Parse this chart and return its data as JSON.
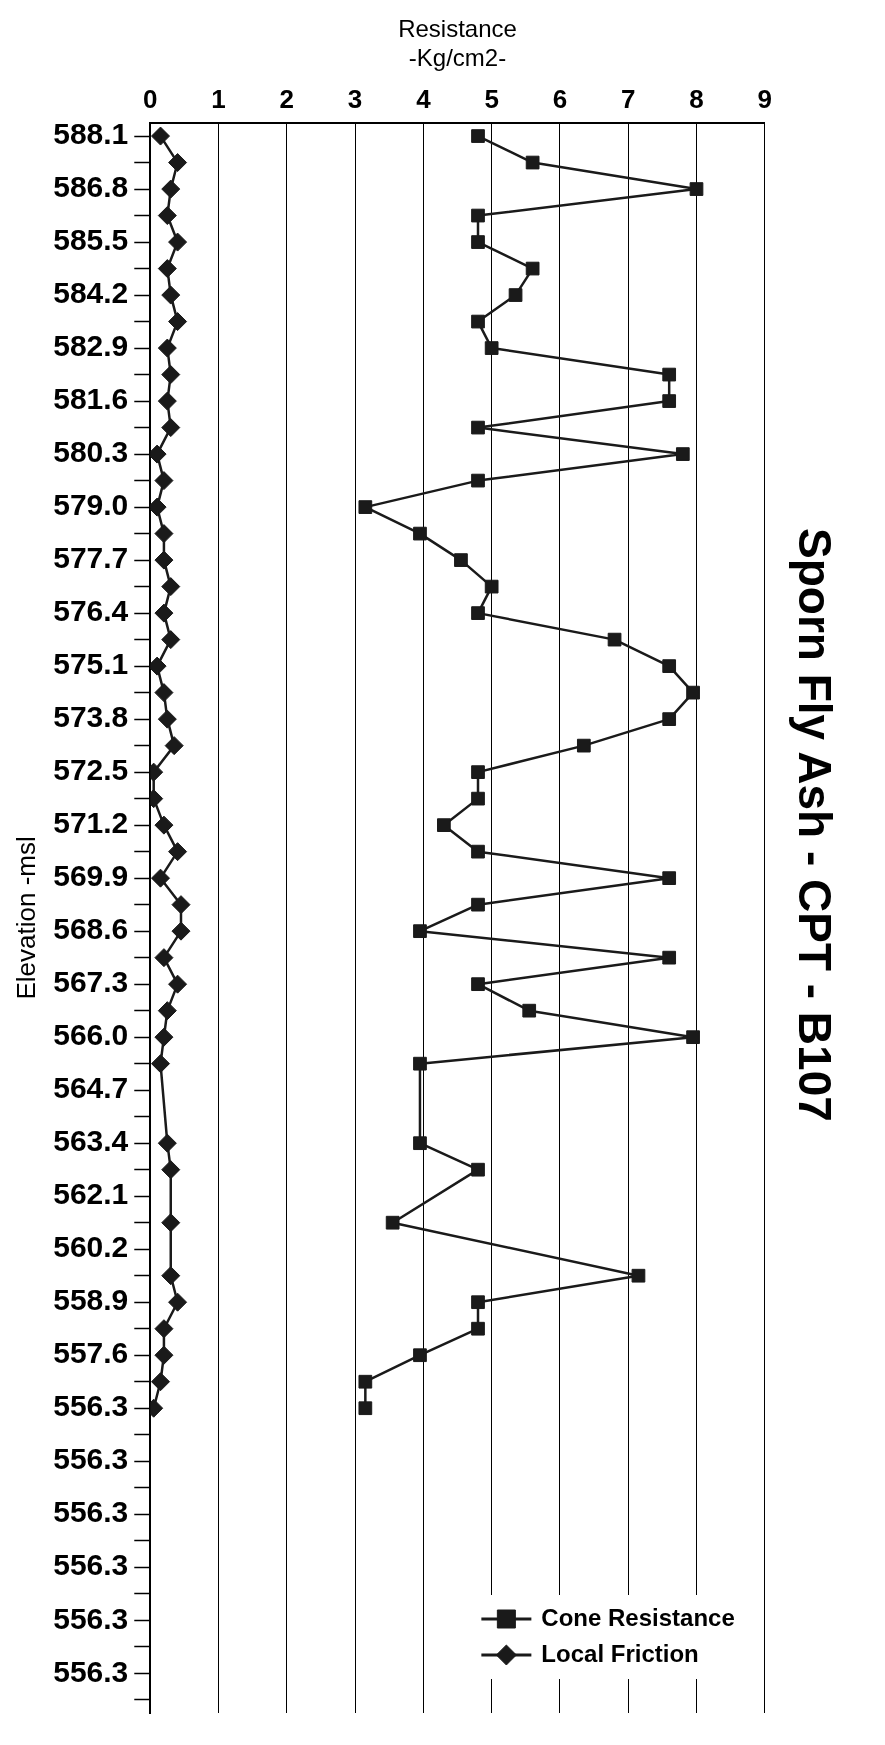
{
  "chart_data": {
    "type": "line",
    "title": "Sporn Fly Ash - CPT - B107",
    "xlabel": "Resistance\n-Kg/cm2-",
    "ylabel": "Elevation -msl",
    "orientation": "horizontal",
    "categories": [
      "588.1",
      null,
      "586.8",
      null,
      "585.5",
      null,
      "584.2",
      null,
      "582.9",
      null,
      "581.6",
      null,
      "580.3",
      null,
      "579.0",
      null,
      "577.7",
      null,
      "576.4",
      null,
      "575.1",
      null,
      "573.8",
      null,
      "572.5",
      null,
      "571.2",
      null,
      "569.9",
      null,
      "568.6",
      null,
      "567.3",
      null,
      "566.0",
      null,
      "564.7",
      null,
      "563.4",
      null,
      "562.1",
      null,
      "560.2",
      null,
      "558.9",
      null,
      "557.6",
      null,
      "556.3",
      null,
      "556.3",
      null,
      "556.3",
      null,
      "556.3",
      null,
      "556.3",
      null,
      "556.3",
      null
    ],
    "series": [
      {
        "name": "Cone Resistance",
        "color": "#1a1a1a",
        "marker": "square",
        "values": [
          4.8,
          5.6,
          8.0,
          4.8,
          4.8,
          5.6,
          5.35,
          4.8,
          5.0,
          7.6,
          7.6,
          4.8,
          7.8,
          4.8,
          3.15,
          3.95,
          4.55,
          5.0,
          4.8,
          6.8,
          7.6,
          7.95,
          7.6,
          6.35,
          4.8,
          4.8,
          4.3,
          4.8,
          7.6,
          4.8,
          3.95,
          7.6,
          4.8,
          5.55,
          7.95,
          3.95,
          null,
          null,
          3.95,
          4.8,
          null,
          3.55,
          null,
          7.15,
          4.8,
          4.8,
          3.95,
          3.15,
          3.15,
          null,
          null,
          null,
          null,
          null,
          null,
          null,
          null,
          null,
          null,
          null
        ]
      },
      {
        "name": "Local Friction",
        "color": "#1a1a1a",
        "marker": "diamond",
        "values": [
          0.15,
          0.4,
          0.3,
          0.25,
          0.4,
          0.25,
          0.3,
          0.4,
          0.25,
          0.3,
          0.25,
          0.3,
          0.1,
          0.2,
          0.1,
          0.2,
          0.2,
          0.3,
          0.2,
          0.3,
          0.1,
          0.2,
          0.25,
          0.35,
          0.05,
          0.05,
          0.2,
          0.4,
          0.15,
          0.45,
          0.45,
          0.2,
          0.4,
          0.25,
          0.2,
          0.15,
          null,
          null,
          0.25,
          0.3,
          null,
          0.3,
          null,
          0.3,
          0.4,
          0.2,
          0.2,
          0.15,
          0.05,
          null,
          null,
          null,
          null,
          null,
          null,
          null,
          null,
          null,
          null,
          null
        ]
      }
    ],
    "xlim": [
      0,
      9
    ],
    "xticks": [
      0,
      1,
      2,
      3,
      4,
      5,
      6,
      7,
      8,
      9
    ],
    "grid": "x",
    "legend": "bottom right"
  }
}
